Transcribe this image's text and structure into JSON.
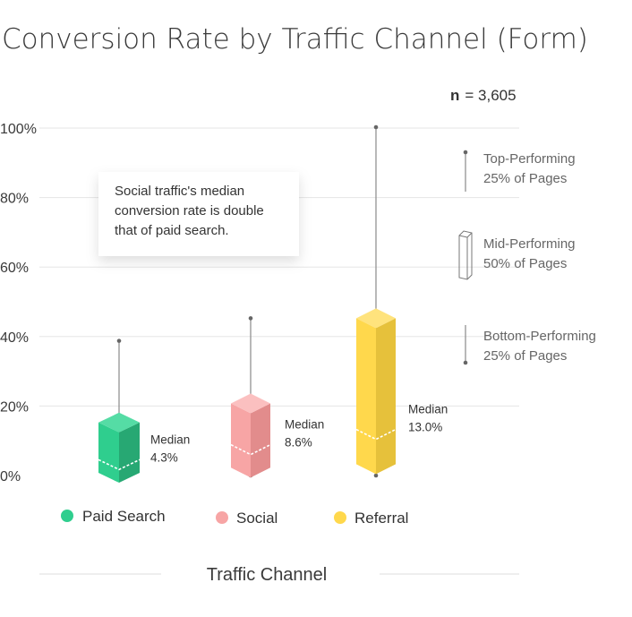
{
  "chart_data": {
    "type": "box",
    "title": "Conversion Rate by Traffic Channel (Form)",
    "n_label": "n",
    "n_value": "= 3,605",
    "xlabel": "Traffic Channel",
    "ylabel": "",
    "ylim": [
      0,
      100
    ],
    "y_ticks": [
      {
        "value": 0,
        "label": "0%"
      },
      {
        "value": 20,
        "label": "20%"
      },
      {
        "value": 40,
        "label": "40%"
      },
      {
        "value": 60,
        "label": "60%"
      },
      {
        "value": 80,
        "label": "80%"
      },
      {
        "value": 100,
        "label": "100%"
      }
    ],
    "grid": true,
    "series": [
      {
        "name": "Paid Search",
        "min": 0,
        "q1": 0.5,
        "median": 4.3,
        "q3": 15,
        "max": 38.5,
        "color": "#2fce8e",
        "side_color": "#27a873",
        "top_color": "#55dca5",
        "median_line1": "Median",
        "median_line2": "4.3%"
      },
      {
        "name": "Social",
        "min": 0,
        "q1": 2,
        "median": 8.6,
        "q3": 20.5,
        "max": 45,
        "color": "#f7a5a5",
        "side_color": "#e28c8c",
        "top_color": "#fbc0c0",
        "median_line1": "Median",
        "median_line2": "8.6%"
      },
      {
        "name": "Referral",
        "min": 0,
        "q1": 3,
        "median": 13.0,
        "q3": 45,
        "max": 100,
        "color": "#ffd84c",
        "side_color": "#e6c13b",
        "top_color": "#ffe37d",
        "median_line1": "Median",
        "median_line2": "13.0%"
      }
    ],
    "annotation": {
      "line1": "Social traffic's median",
      "line2": "conversion rate is double",
      "line3": "that of paid search."
    },
    "key": {
      "top": {
        "line1": "Top-Performing",
        "line2": "25% of Pages"
      },
      "mid": {
        "line1": "Mid-Performing",
        "line2": "50% of Pages"
      },
      "bottom": {
        "line1": "Bottom-Performing",
        "line2": "25% of Pages"
      }
    }
  }
}
